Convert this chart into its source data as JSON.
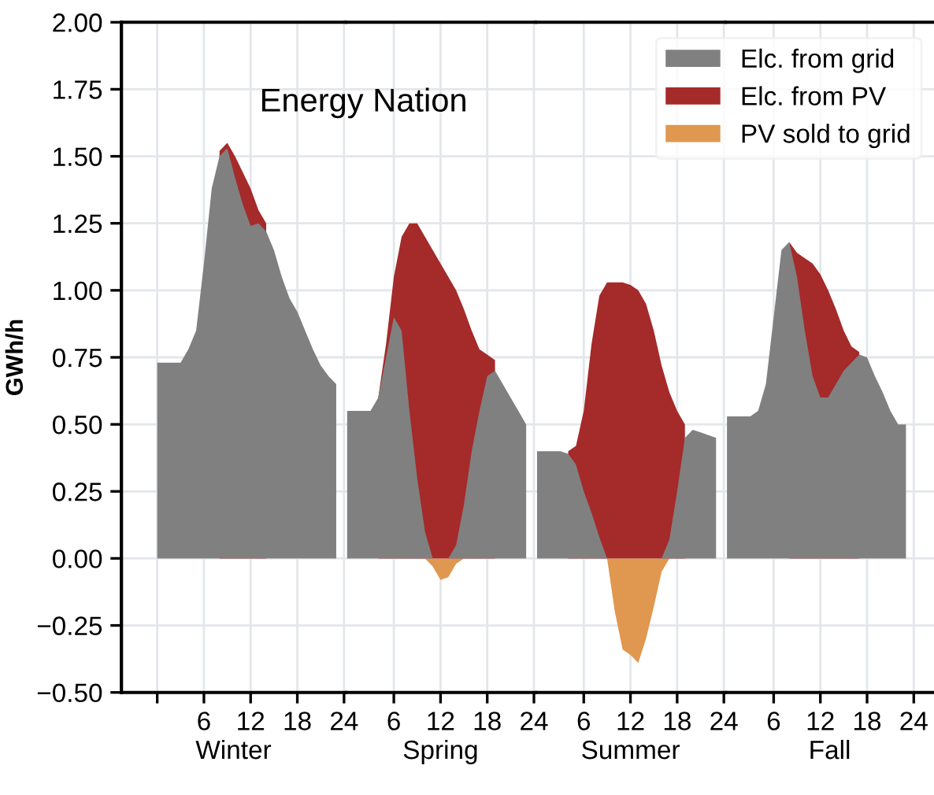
{
  "chart_data": [
    {
      "type": "area",
      "title": "Energy Nation",
      "ylabel": "GWh/h",
      "xlabel": "Winter",
      "x": [
        0,
        1,
        2,
        3,
        4,
        5,
        6,
        7,
        8,
        9,
        10,
        11,
        12,
        13,
        14,
        15,
        16,
        17,
        18,
        19,
        20,
        21,
        22,
        23
      ],
      "series": [
        {
          "color": "#808080",
          "values": [
            0.73,
            0.73,
            0.73,
            0.73,
            0.78,
            0.85,
            1.1,
            1.38,
            1.5,
            1.53,
            1.42,
            1.32,
            1.24,
            1.25,
            1.22,
            1.15,
            1.05,
            0.97,
            0.92,
            0.85,
            0.78,
            0.72,
            0.68,
            0.65
          ]
        },
        {
          "color": "#a52a2a",
          "values": [
            null,
            null,
            null,
            null,
            null,
            null,
            null,
            null,
            1.52,
            1.55,
            1.5,
            1.44,
            1.38,
            1.3,
            1.25,
            null,
            null,
            null,
            null,
            null,
            null,
            null,
            null,
            null
          ]
        },
        {
          "color": "#e0974f",
          "values": [
            null,
            null,
            null,
            null,
            null,
            null,
            null,
            null,
            null,
            null,
            null,
            null,
            null,
            null,
            null,
            null,
            null,
            null,
            null,
            null,
            null,
            null,
            null,
            null
          ]
        }
      ],
      "xlim": [
        -4.6,
        24.2
      ],
      "xticks": [
        {
          "value": 0,
          "label": null
        },
        6,
        12,
        18,
        24
      ],
      "ylim": [
        -0.5,
        2.0
      ],
      "yticks": [
        {
          "value": -0.5,
          "label": "−0.50"
        },
        {
          "value": -0.25,
          "label": "−0.25"
        },
        {
          "value": 0,
          "label": "0.00"
        },
        {
          "value": 0.25,
          "label": "0.25"
        },
        {
          "value": 0.5,
          "label": "0.50"
        },
        {
          "value": 0.75,
          "label": "0.75"
        },
        {
          "value": 1.0,
          "label": "1.00"
        },
        {
          "value": 1.25,
          "label": "1.25"
        },
        {
          "value": 1.5,
          "label": "1.50"
        },
        {
          "value": 1.75,
          "label": "1.75"
        },
        {
          "value": 2.0,
          "label": "2.00"
        }
      ],
      "grid": true
    },
    {
      "type": "area",
      "xlabel": "Spring",
      "tick_labels": "x",
      "x": [
        0,
        1,
        2,
        3,
        4,
        5,
        6,
        7,
        8,
        9,
        10,
        11,
        12,
        13,
        14,
        15,
        16,
        17,
        18,
        19,
        20,
        21,
        22,
        23
      ],
      "series": [
        {
          "color": "#808080",
          "values": [
            0.55,
            0.55,
            0.55,
            0.55,
            0.6,
            0.75,
            0.9,
            0.85,
            0.55,
            0.3,
            0.1,
            0,
            0,
            0,
            0.05,
            0.2,
            0.4,
            0.55,
            0.68,
            0.7,
            0.65,
            0.6,
            0.55,
            0.5
          ]
        },
        {
          "color": "#a52a2a",
          "values": [
            null,
            null,
            null,
            null,
            0.6,
            0.8,
            1.05,
            1.2,
            1.25,
            1.25,
            1.2,
            1.15,
            1.1,
            1.05,
            1.0,
            0.93,
            0.85,
            0.78,
            0.76,
            0.74,
            null,
            null,
            null,
            null
          ]
        },
        {
          "color": "#e0974f",
          "values": [
            null,
            null,
            null,
            null,
            null,
            null,
            null,
            null,
            null,
            null,
            0,
            -0.03,
            -0.08,
            -0.07,
            -0.02,
            0,
            null,
            null,
            null,
            null,
            null,
            null,
            null,
            null
          ]
        }
      ],
      "xlim": [
        -0.2,
        24.2
      ],
      "xticks": [
        6,
        12,
        18,
        24
      ],
      "ylim": [
        -0.5,
        2.0
      ],
      "yticks": [
        -0.5,
        -0.25,
        0,
        0.25,
        0.5,
        0.75,
        1.0,
        1.25,
        1.5,
        1.75,
        2.0
      ],
      "grid": true
    },
    {
      "type": "area",
      "xlabel": "Summer",
      "tick_labels": "x",
      "legend": "top right",
      "x": [
        0,
        1,
        2,
        3,
        4,
        5,
        6,
        7,
        8,
        9,
        10,
        11,
        12,
        13,
        14,
        15,
        16,
        17,
        18,
        19,
        20,
        21,
        22,
        23
      ],
      "series": [
        {
          "name": "Elc. from grid",
          "color": "#808080",
          "values": [
            0.4,
            0.4,
            0.4,
            0.4,
            0.39,
            0.35,
            0.25,
            0.17,
            0.08,
            0,
            0,
            0,
            0,
            0,
            0,
            0,
            0,
            0.07,
            0.25,
            0.45,
            0.48,
            0.47,
            0.46,
            0.45
          ]
        },
        {
          "name": "Elc. from PV",
          "color": "#a52a2a",
          "values": [
            null,
            null,
            null,
            null,
            0.4,
            0.42,
            0.55,
            0.8,
            0.98,
            1.03,
            1.03,
            1.03,
            1.02,
            1.0,
            0.95,
            0.85,
            0.72,
            0.62,
            0.55,
            0.5,
            null,
            null,
            null,
            null
          ]
        },
        {
          "name": "PV sold to grid",
          "color": "#e0974f",
          "values": [
            null,
            null,
            null,
            null,
            null,
            null,
            null,
            null,
            null,
            0,
            -0.2,
            -0.34,
            -0.36,
            -0.39,
            -0.3,
            -0.18,
            -0.05,
            0,
            null,
            null,
            null,
            null,
            null,
            null
          ]
        }
      ],
      "xlim": [
        -0.2,
        24.2
      ],
      "xticks": [
        6,
        12,
        18,
        24
      ],
      "ylim": [
        -0.5,
        2.0
      ],
      "yticks": [
        -0.5,
        -0.25,
        0,
        0.25,
        0.5,
        0.75,
        1.0,
        1.25,
        1.5,
        1.75,
        2.0
      ],
      "grid": true
    },
    {
      "type": "area",
      "xlabel": "Fall",
      "tick_labels": "x",
      "x": [
        0,
        1,
        2,
        3,
        4,
        5,
        6,
        7,
        8,
        9,
        10,
        11,
        12,
        13,
        14,
        15,
        16,
        17,
        18,
        19,
        20,
        21,
        22,
        23
      ],
      "series": [
        {
          "color": "#808080",
          "values": [
            0.53,
            0.53,
            0.53,
            0.53,
            0.55,
            0.65,
            0.9,
            1.15,
            1.18,
            1.05,
            0.85,
            0.68,
            0.6,
            0.6,
            0.65,
            0.7,
            0.73,
            0.76,
            0.75,
            0.68,
            0.62,
            0.55,
            0.5,
            0.5
          ]
        },
        {
          "color": "#a52a2a",
          "values": [
            null,
            null,
            null,
            null,
            null,
            null,
            null,
            null,
            1.18,
            1.14,
            1.12,
            1.1,
            1.06,
            1.0,
            0.93,
            0.85,
            0.79,
            0.77,
            null,
            null,
            null,
            null,
            null,
            null
          ]
        },
        {
          "color": "#e0974f",
          "values": [
            null,
            null,
            null,
            null,
            null,
            null,
            null,
            null,
            null,
            null,
            null,
            null,
            null,
            null,
            null,
            null,
            null,
            null,
            null,
            null,
            null,
            null,
            null,
            null
          ]
        }
      ],
      "xlim": [
        -0.2,
        26.6
      ],
      "xticks": [
        6,
        12,
        18,
        24
      ],
      "ylim": [
        -0.5,
        2.0
      ],
      "yticks": [
        -0.5,
        -0.25,
        0,
        0.25,
        0.5,
        0.75,
        1.0,
        1.25,
        1.5,
        1.75,
        2.0
      ],
      "grid": true
    }
  ]
}
